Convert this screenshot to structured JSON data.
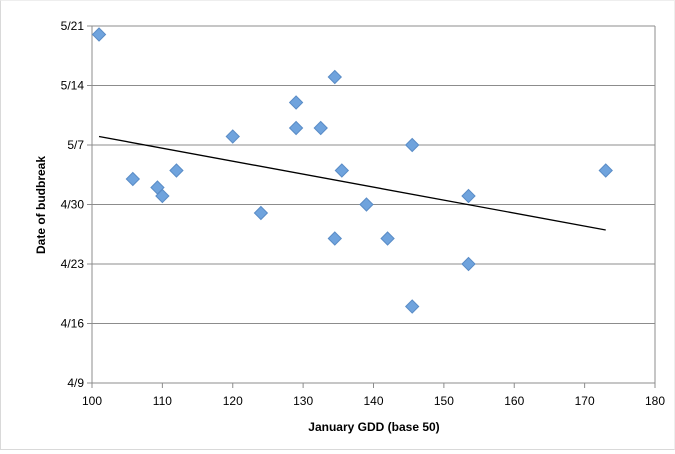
{
  "chart_data": {
    "type": "scatter",
    "title": "",
    "xlabel": "January GDD (base 50)",
    "ylabel": "Date of budbreak",
    "xlim": [
      100,
      180
    ],
    "xticks": [
      100,
      110,
      120,
      130,
      140,
      150,
      160,
      170,
      180
    ],
    "ylim": [
      "4/9",
      "5/21"
    ],
    "yticks": [
      "4/9",
      "4/16",
      "4/23",
      "4/30",
      "5/7",
      "5/14",
      "5/21"
    ],
    "grid": "horizontal",
    "legend": "none",
    "marker_color": "#6fa3dd",
    "series": [
      {
        "points": [
          {
            "x": 101,
            "y": "5/20"
          },
          {
            "x": 105.8,
            "y": "5/3"
          },
          {
            "x": 109.3,
            "y": "5/2"
          },
          {
            "x": 110,
            "y": "5/1"
          },
          {
            "x": 112,
            "y": "5/4"
          },
          {
            "x": 120,
            "y": "5/8"
          },
          {
            "x": 124,
            "y": "4/29"
          },
          {
            "x": 129,
            "y": "5/12"
          },
          {
            "x": 129,
            "y": "5/9"
          },
          {
            "x": 132.5,
            "y": "5/9"
          },
          {
            "x": 134.5,
            "y": "5/15"
          },
          {
            "x": 134.5,
            "y": "4/26"
          },
          {
            "x": 135.5,
            "y": "5/4"
          },
          {
            "x": 139,
            "y": "4/30"
          },
          {
            "x": 142,
            "y": "4/26"
          },
          {
            "x": 145.5,
            "y": "5/7"
          },
          {
            "x": 145.5,
            "y": "4/18"
          },
          {
            "x": 153.5,
            "y": "5/1"
          },
          {
            "x": 153.5,
            "y": "4/23"
          },
          {
            "x": 173,
            "y": "5/4"
          }
        ]
      }
    ],
    "trendline": {
      "type": "linear",
      "from": {
        "x": 101,
        "y": "5/8"
      },
      "to": {
        "x": 173,
        "y": "4/27"
      },
      "color": "#000000"
    }
  }
}
